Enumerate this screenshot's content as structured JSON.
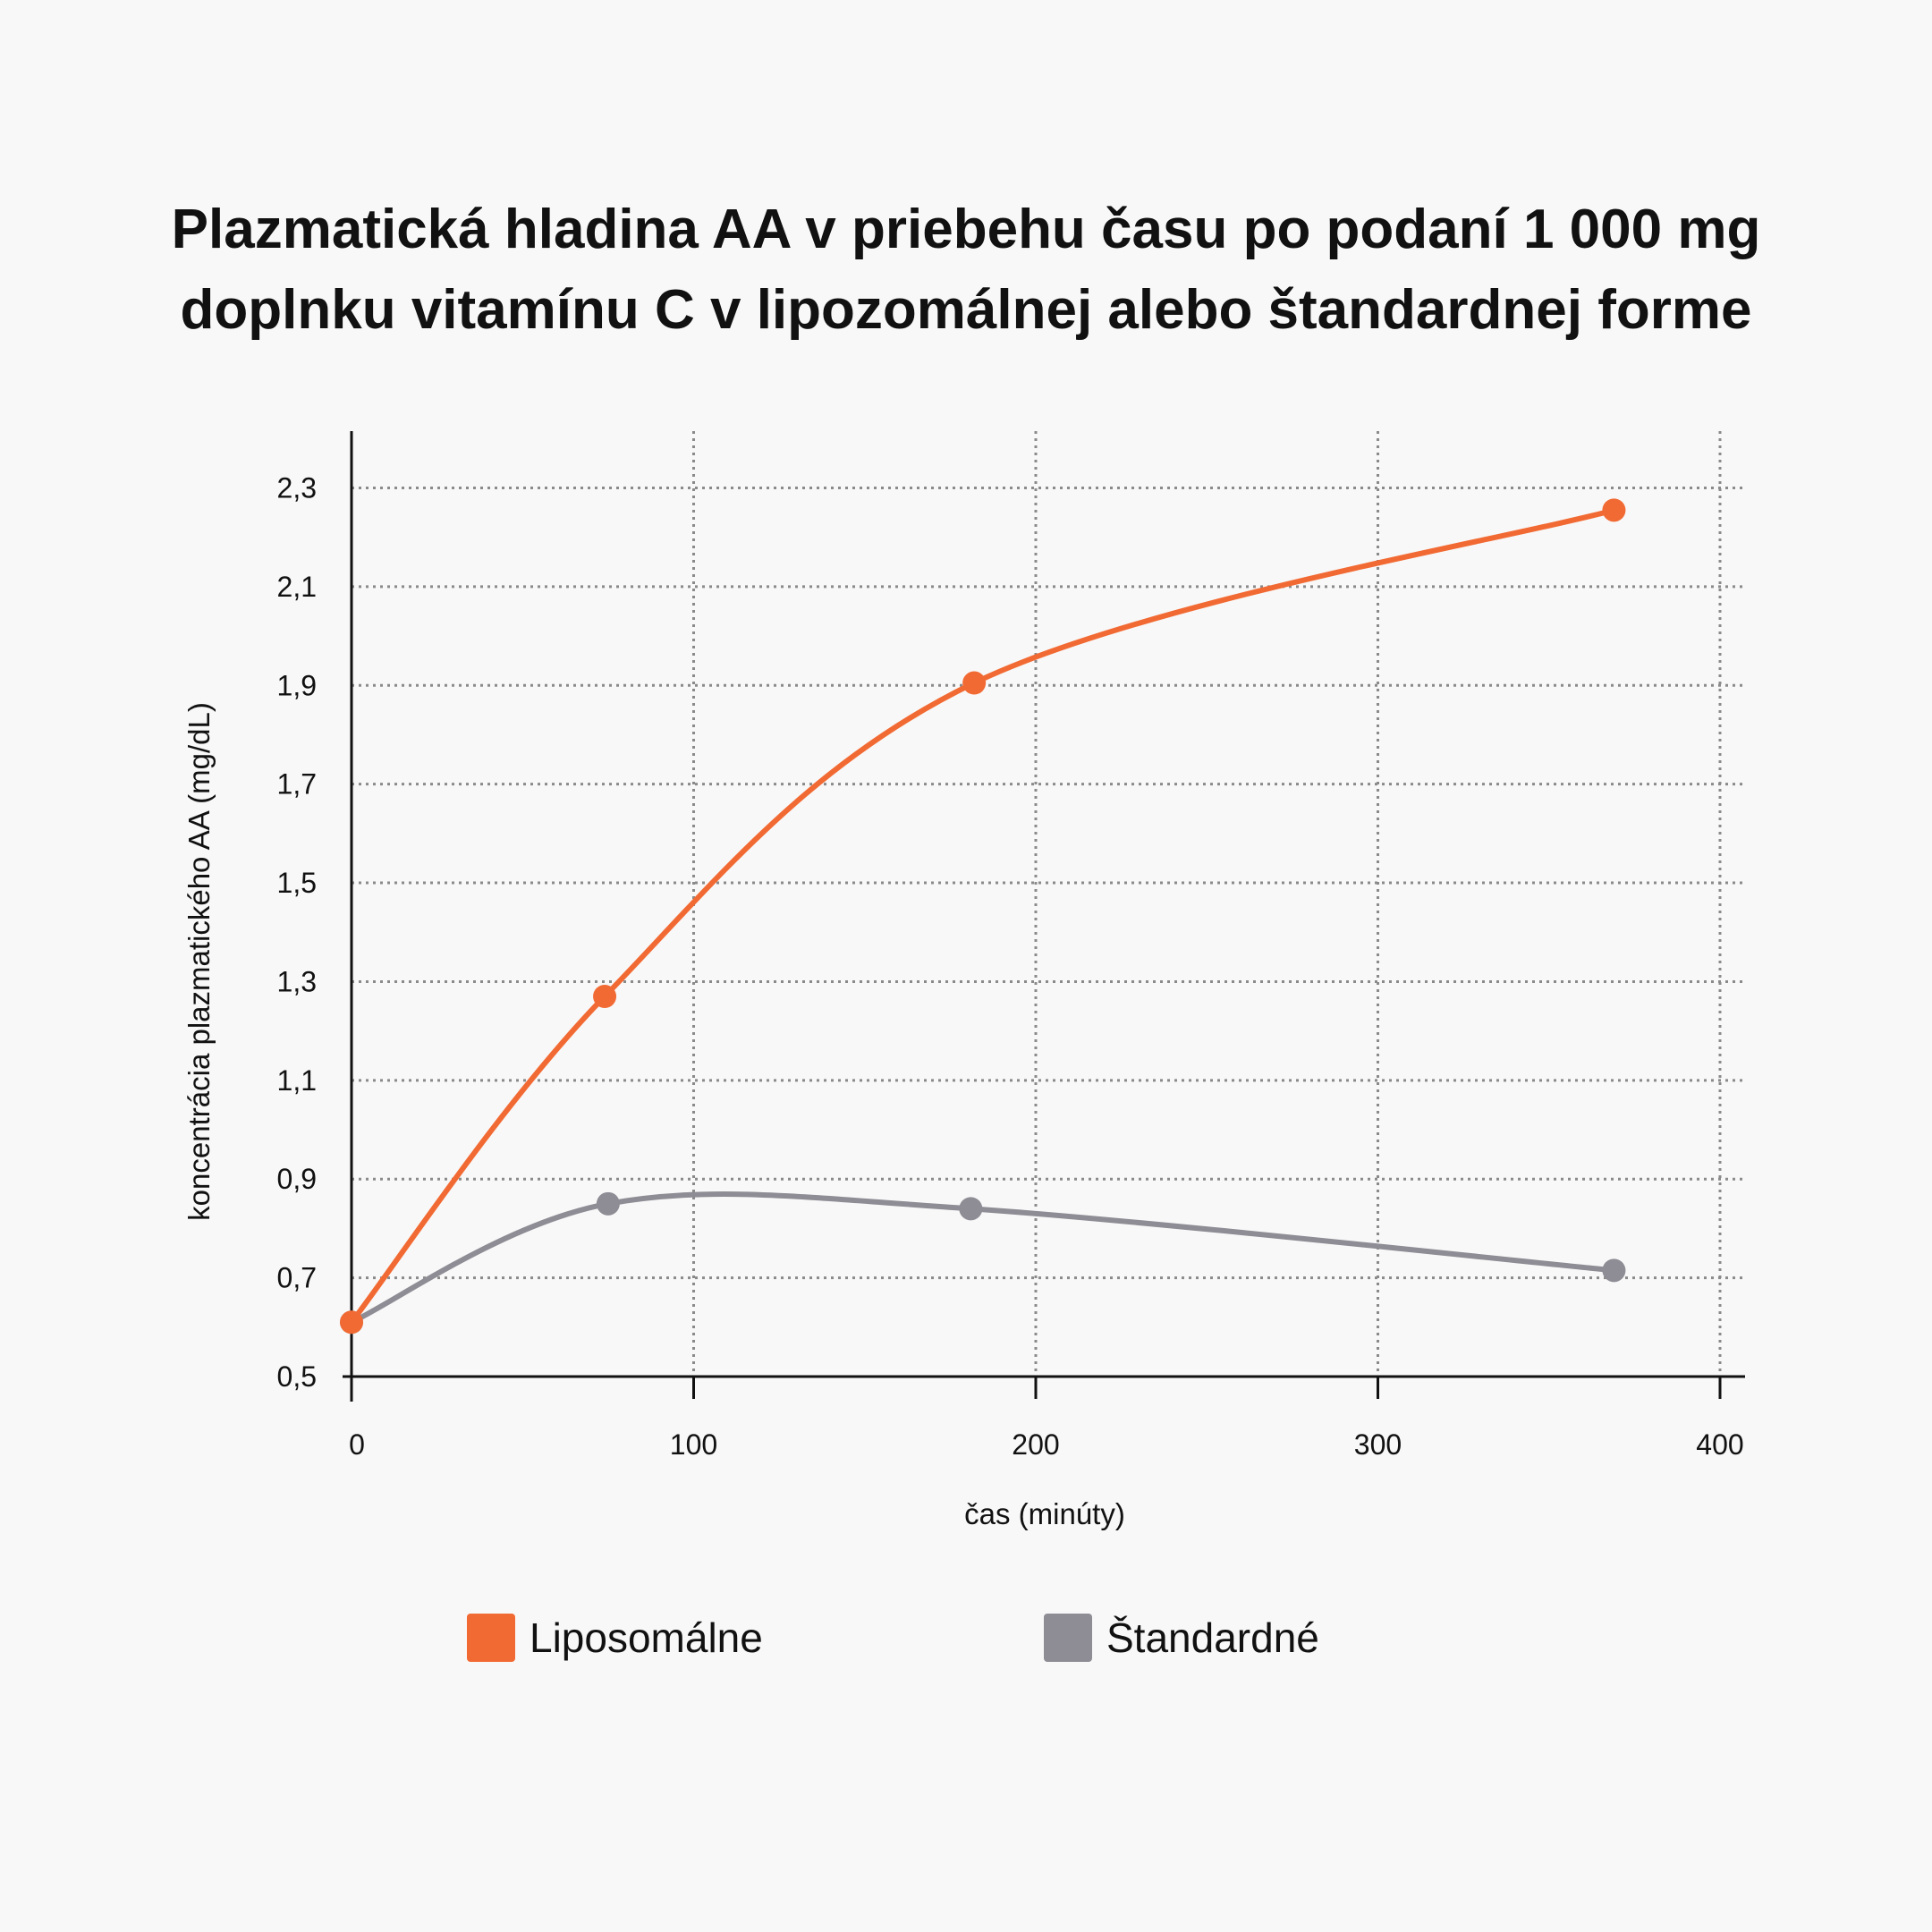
{
  "title_line1": "Plazmatická hladina AA v priebehu času po podaní 1 000 mg",
  "title_line2": "doplnku vitamínu C v lipozomálnej alebo štandardnej forme",
  "chart_data": {
    "type": "line",
    "title": "Plazmatická hladina AA v priebehu času po podaní 1 000 mg doplnku vitamínu C v lipozomálnej alebo štandardnej forme",
    "xlabel": "čas (minúty)",
    "ylabel": "koncentrácia plazmatického AA (mg/dL)",
    "xlim": [
      0,
      400
    ],
    "ylim": [
      0.5,
      2.3
    ],
    "xticks": [
      0,
      100,
      200,
      300,
      400
    ],
    "xtick_labels": [
      "0",
      "100",
      "200",
      "300",
      "400"
    ],
    "yticks": [
      0.5,
      0.7,
      0.9,
      1.1,
      1.3,
      1.5,
      1.7,
      1.9,
      2.1,
      2.3
    ],
    "ytick_labels": [
      "0,5",
      "0,7",
      "0,9",
      "1,1",
      "1,3",
      "1,5",
      "1,7",
      "1,9",
      "2,1",
      "2,3"
    ],
    "grid": true,
    "legend_position": "bottom",
    "series": [
      {
        "name": "Liposomálne",
        "color": "#f26a33",
        "x": [
          0,
          74,
          182,
          369
        ],
        "y": [
          0.61,
          1.27,
          1.905,
          2.255
        ]
      },
      {
        "name": "Štandardné",
        "color": "#8e8c94",
        "x": [
          0,
          75,
          181,
          369
        ],
        "y": [
          0.61,
          0.85,
          0.84,
          0.715
        ]
      }
    ]
  }
}
